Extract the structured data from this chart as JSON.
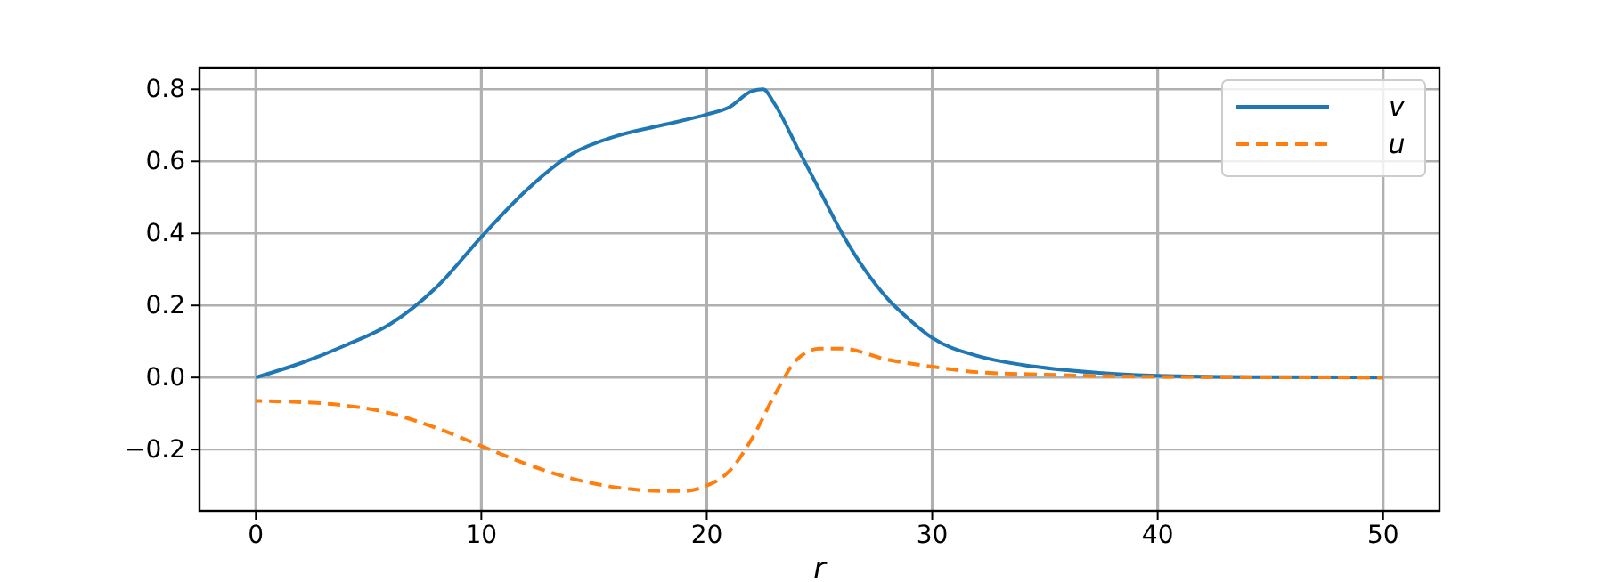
{
  "chart_data": {
    "type": "line",
    "xlabel": "r",
    "xlim": [
      -2.5,
      52.5
    ],
    "ylim": [
      -0.37,
      0.86
    ],
    "xticks": [
      0,
      10,
      20,
      30,
      40,
      50
    ],
    "yticks": [
      {
        "value": -0.2,
        "label": "−0.2"
      },
      {
        "value": 0,
        "label": "0.0"
      },
      {
        "value": 0.2,
        "label": "0.2"
      },
      {
        "value": 0.4,
        "label": "0.4"
      },
      {
        "value": 0.6,
        "label": "0.6"
      },
      {
        "value": 0.8,
        "label": "0.8"
      }
    ],
    "grid": true,
    "legend": "top right",
    "series": [
      {
        "name": "v",
        "color": "#1f77b4",
        "line_style": "solid",
        "x": [
          0,
          2,
          4,
          6,
          8,
          10,
          12,
          14,
          16,
          18,
          20,
          21,
          22,
          22.5,
          23,
          24,
          25,
          26,
          27,
          28,
          29,
          30,
          32,
          34,
          36,
          40,
          45,
          50
        ],
        "values": [
          0,
          0.04,
          0.09,
          0.15,
          0.25,
          0.39,
          0.52,
          0.62,
          0.67,
          0.7,
          0.73,
          0.75,
          0.795,
          0.8,
          0.76,
          0.64,
          0.52,
          0.4,
          0.3,
          0.22,
          0.16,
          0.11,
          0.06,
          0.035,
          0.02,
          0.005,
          0.001,
          0
        ]
      },
      {
        "name": "u",
        "color": "#ff7f0e",
        "line_style": "dashed",
        "x": [
          0,
          3,
          6,
          8,
          10,
          12,
          14,
          16,
          18,
          19,
          20,
          21,
          22,
          23,
          24,
          25,
          26,
          28,
          30,
          32,
          35,
          40,
          50
        ],
        "values": [
          -0.065,
          -0.072,
          -0.1,
          -0.14,
          -0.19,
          -0.24,
          -0.28,
          -0.305,
          -0.315,
          -0.315,
          -0.3,
          -0.26,
          -0.17,
          -0.05,
          0.05,
          0.08,
          0.08,
          0.05,
          0.03,
          0.015,
          0.008,
          0.002,
          0
        ]
      }
    ]
  }
}
